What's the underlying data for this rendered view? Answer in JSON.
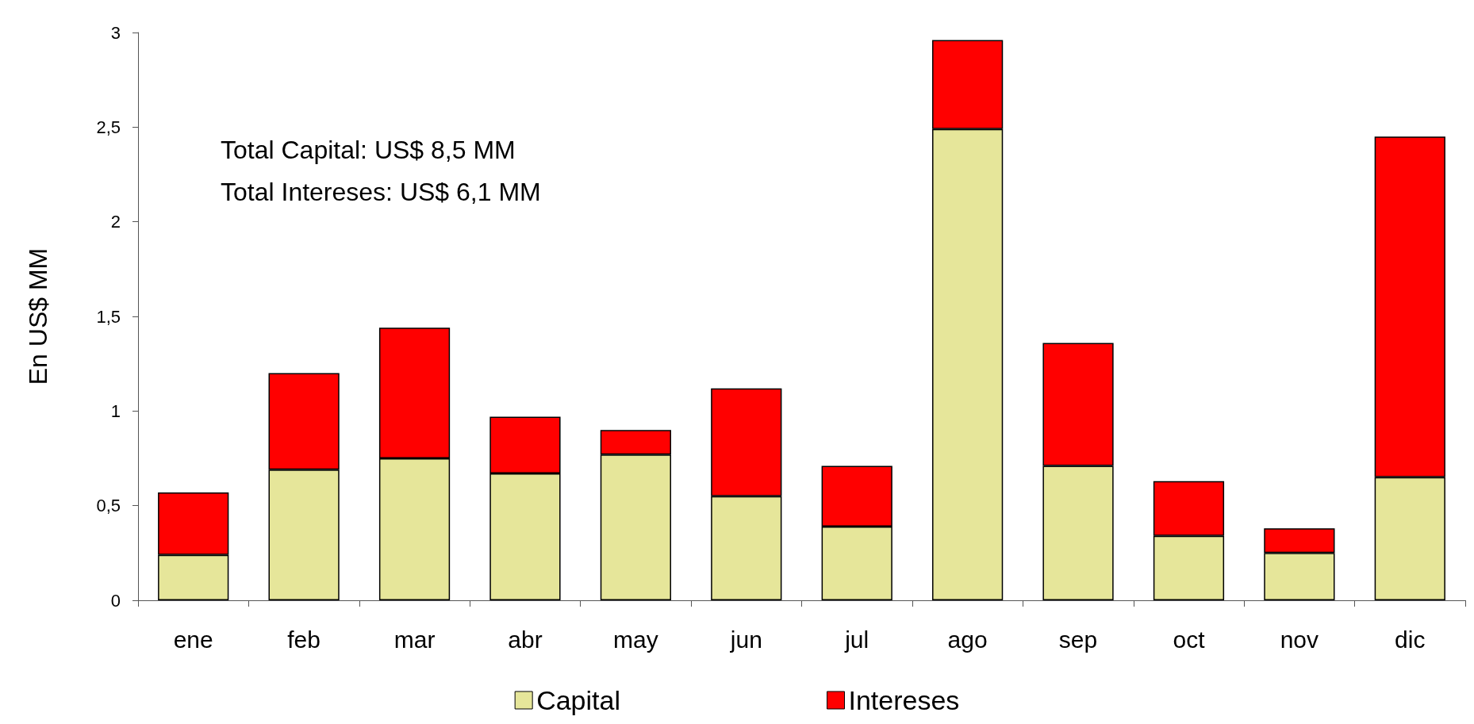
{
  "chart_data": {
    "type": "bar",
    "stacked": true,
    "ylabel": "En US$ MM",
    "categories": [
      "ene",
      "feb",
      "mar",
      "abr",
      "may",
      "jun",
      "jul",
      "ago",
      "sep",
      "oct",
      "nov",
      "dic"
    ],
    "series": [
      {
        "name": "Capital",
        "color": "#e6e69a",
        "values": [
          0.24,
          0.69,
          0.75,
          0.67,
          0.77,
          0.55,
          0.39,
          2.49,
          0.71,
          0.34,
          0.25,
          0.65
        ]
      },
      {
        "name": "Intereses",
        "color": "#ff0000",
        "values": [
          0.33,
          0.51,
          0.69,
          0.3,
          0.13,
          0.57,
          0.32,
          0.47,
          0.65,
          0.29,
          0.13,
          1.8
        ]
      }
    ],
    "ylim": [
      0,
      3
    ],
    "yticks": [
      0,
      {
        "value": 0.5,
        "label": "0,5"
      },
      1,
      {
        "value": 1.5,
        "label": "1,5"
      },
      2,
      {
        "value": 2.5,
        "label": "2,5"
      },
      3
    ],
    "grid": false,
    "legend": "bottom",
    "annotations": [
      "Total Capital: US$ 8,5 MM",
      "Total Intereses: US$ 6,1 MM"
    ]
  }
}
